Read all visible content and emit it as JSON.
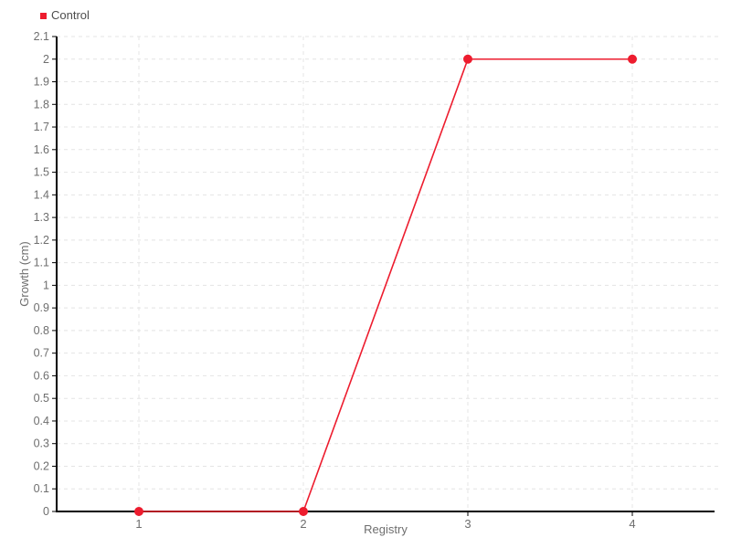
{
  "chart_data": {
    "type": "line",
    "categories": [
      "1",
      "2",
      "3",
      "4"
    ],
    "series": [
      {
        "name": "Control",
        "values": [
          0,
          0,
          2,
          2
        ],
        "color": "#ed1c2e"
      }
    ],
    "title": "",
    "xlabel": "Registry",
    "ylabel": "Growth (cm)",
    "ylim": [
      0,
      2.1
    ],
    "y_tick_step": 0.1,
    "y_tick_labels": [
      "0",
      "0.1",
      "0.2",
      "0.3",
      "0.4",
      "0.5",
      "0.6",
      "0.7",
      "0.8",
      "0.9",
      "1",
      "1.1",
      "1.2",
      "1.3",
      "1.4",
      "1.5",
      "1.6",
      "1.7",
      "1.8",
      "1.9",
      "2",
      "2.1"
    ],
    "grid": "dashed",
    "legend_position": "top-left",
    "marker": "circle"
  },
  "style": {
    "background": "#ffffff",
    "axis_color": "#000000",
    "grid_color": "#e4e4e4",
    "tick_label_color": "#6e6e6e",
    "axis_title_color": "#6e6e6e",
    "legend_text_color": "#4d4d4d"
  }
}
